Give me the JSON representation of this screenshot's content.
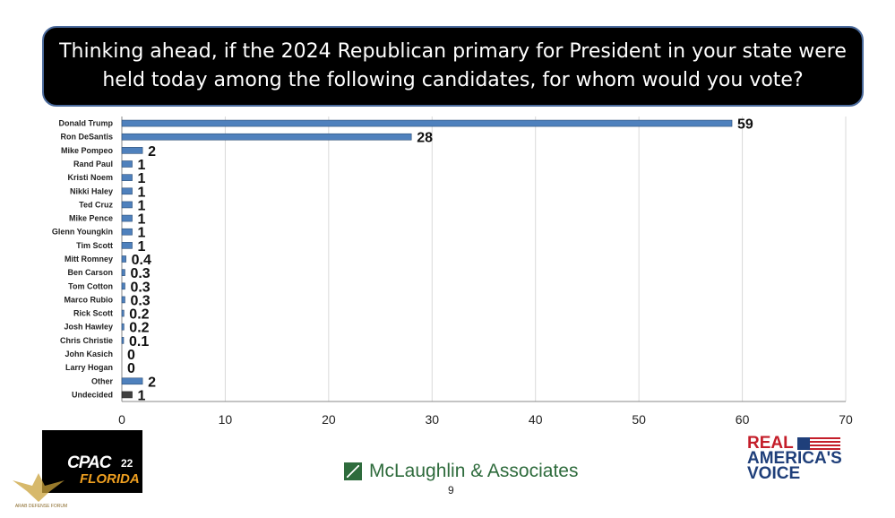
{
  "title": "Thinking ahead, if the 2024 Republican primary for President in your state were held today among the following candidates, for whom would you vote?",
  "chart_data": {
    "type": "bar",
    "orientation": "horizontal",
    "categories": [
      "Donald Trump",
      "Ron DeSantis",
      "Mike Pompeo",
      "Rand Paul",
      "Kristi Noem",
      "Nikki Haley",
      "Ted Cruz",
      "Mike Pence",
      "Glenn Youngkin",
      "Tim Scott",
      "Mitt Romney",
      "Ben Carson",
      "Tom Cotton",
      "Marco Rubio",
      "Rick Scott",
      "Josh Hawley",
      "Chris Christie",
      "John Kasich",
      "Larry Hogan",
      "Other",
      "Undecided"
    ],
    "values": [
      59,
      28,
      2,
      1,
      1,
      1,
      1,
      1,
      1,
      1,
      0.4,
      0.3,
      0.3,
      0.3,
      0.2,
      0.2,
      0.1,
      0,
      0,
      2,
      1
    ],
    "data_labels": [
      "59",
      "28",
      "2",
      "1",
      "1",
      "1",
      "1",
      "1",
      "1",
      "1",
      "0.4",
      "0.3",
      "0.3",
      "0.3",
      "0.2",
      "0.2",
      "0.1",
      "0",
      "0",
      "2",
      "1"
    ],
    "xlim": [
      0,
      70
    ],
    "xticks": [
      0,
      10,
      20,
      30,
      40,
      50,
      60,
      70
    ],
    "grid": "vertical",
    "bar_color": "#4f81bd",
    "undecided_color": "#404040"
  },
  "logos": {
    "cpac_text": "CPAC",
    "cpac_year": "22",
    "cpac_sub": "FLORIDA",
    "firm": "McLaughlin & Associates",
    "rav_line1": "REAL",
    "rav_line2": "AMERICA'S",
    "rav_line3": "VOICE",
    "watermark": "ARAB DEFENSE FORUM"
  },
  "page_number": "9"
}
